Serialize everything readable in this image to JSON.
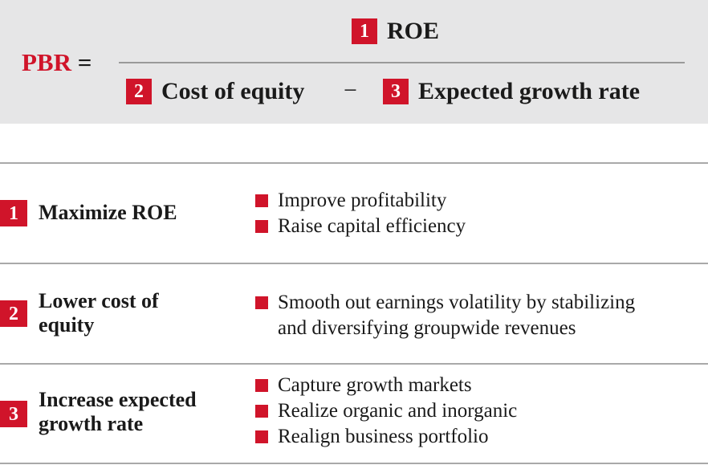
{
  "colors": {
    "accent": "#d0142a",
    "band": "#e6e6e7",
    "divider": "#a9a9a9"
  },
  "formula": {
    "lhs": "PBR",
    "equals": "=",
    "numerator": {
      "number": "1",
      "label": "ROE"
    },
    "denominator": [
      {
        "number": "2",
        "label": "Cost of equity"
      },
      {
        "number": "3",
        "label": "Expected growth rate"
      }
    ],
    "operator": "−"
  },
  "rows": [
    {
      "number": "1",
      "title_lines": [
        "Maximize ROE"
      ],
      "bullets": [
        [
          "Improve profitability"
        ],
        [
          "Raise capital efficiency"
        ]
      ]
    },
    {
      "number": "2",
      "title_lines": [
        "Lower cost of",
        "equity"
      ],
      "bullets": [
        [
          "Smooth out earnings volatility by stabilizing",
          "and diversifying groupwide revenues"
        ]
      ]
    },
    {
      "number": "3",
      "title_lines": [
        "Increase expected",
        "growth rate"
      ],
      "bullets": [
        [
          "Capture growth markets"
        ],
        [
          "Realize organic and inorganic"
        ],
        [
          "Realign business portfolio"
        ]
      ]
    }
  ]
}
